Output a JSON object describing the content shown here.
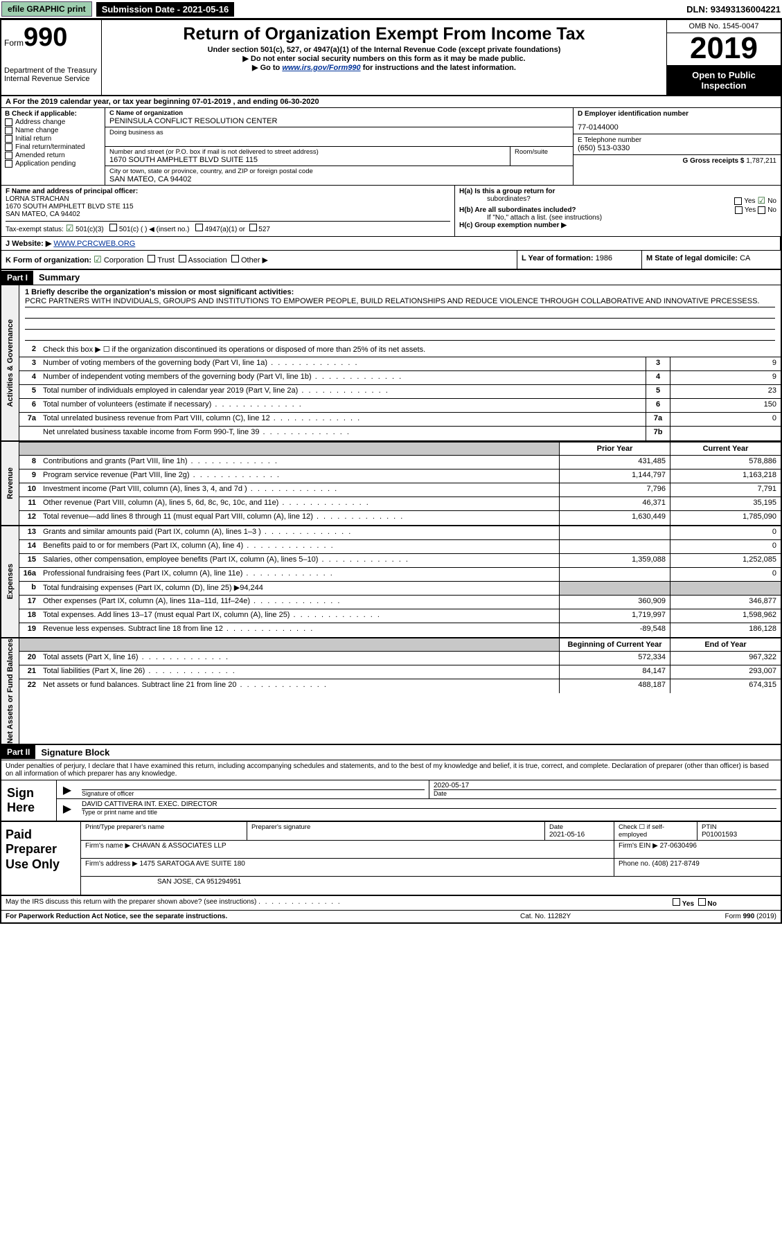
{
  "topbar": {
    "efile": "efile GRAPHIC print",
    "sub_label": "Submission Date - 2021-05-16",
    "dln": "DLN: 93493136004221"
  },
  "header": {
    "form_word": "Form",
    "form_num": "990",
    "dept": "Department of the Treasury",
    "irs": "Internal Revenue Service",
    "title": "Return of Organization Exempt From Income Tax",
    "sub1": "Under section 501(c), 527, or 4947(a)(1) of the Internal Revenue Code (except private foundations)",
    "sub2": "▶ Do not enter social security numbers on this form as it may be made public.",
    "sub3_pre": "▶ Go to ",
    "sub3_link": "www.irs.gov/Form990",
    "sub3_post": " for instructions and the latest information.",
    "omb": "OMB No. 1545-0047",
    "year": "2019",
    "otp": "Open to Public Inspection"
  },
  "row_a": "A For the 2019 calendar year, or tax year beginning 07-01-2019   , and ending 06-30-2020",
  "box_b": {
    "label": "B Check if applicable:",
    "items": [
      "Address change",
      "Name change",
      "Initial return",
      "Final return/terminated",
      "Amended return",
      "Application pending"
    ]
  },
  "box_c": {
    "name_label": "C Name of organization",
    "name": "PENINSULA CONFLICT RESOLUTION CENTER",
    "dba_label": "Doing business as",
    "addr_label": "Number and street (or P.O. box if mail is not delivered to street address)",
    "room_label": "Room/suite",
    "addr": "1670 SOUTH AMPHLETT BLVD SUITE 115",
    "city_label": "City or town, state or province, country, and ZIP or foreign postal code",
    "city": "SAN MATEO, CA  94402"
  },
  "box_d": {
    "label": "D Employer identification number",
    "value": "77-0144000"
  },
  "box_e": {
    "label": "E Telephone number",
    "value": "(650) 513-0330"
  },
  "box_g": {
    "label": "G Gross receipts $",
    "value": "1,787,211"
  },
  "box_f": {
    "label": "F  Name and address of principal officer:",
    "name": "LORNA STRACHAN",
    "addr1": "1670 SOUTH AMPHLETT BLVD STE 115",
    "addr2": "SAN MATEO, CA  94402"
  },
  "box_h": {
    "a_label": "H(a)  Is this a group return for",
    "a_sub": "subordinates?",
    "b_label": "H(b)  Are all subordinates included?",
    "b_note": "If \"No,\" attach a list. (see instructions)",
    "c_label": "H(c)  Group exemption number ▶"
  },
  "tax_exempt": {
    "label": "Tax-exempt status:",
    "c3": "501(c)(3)",
    "c_other": "501(c) (   ) ◀ (insert no.)",
    "a1": "4947(a)(1) or",
    "s527": "527"
  },
  "website": {
    "label": "J  Website: ▶",
    "value": "WWW.PCRCWEB.ORG"
  },
  "row_k": {
    "label": "K Form of organization:",
    "corp": "Corporation",
    "trust": "Trust",
    "assoc": "Association",
    "other": "Other ▶",
    "l_label": "L Year of formation:",
    "l_value": "1986",
    "m_label": "M State of legal domicile:",
    "m_value": "CA"
  },
  "part1": {
    "hdr": "Part I",
    "title": "Summary",
    "q1": "1 Briefly describe the organization's mission or most significant activities:",
    "mission": "PCRC PARTNERS WITH INDVIDUALS, GROUPS AND INSTITUTIONS TO EMPOWER PEOPLE, BUILD RELATIONSHIPS AND REDUCE VIOLENCE THROUGH COLLABORATIVE AND INNOVATIVE PRCESSESS.",
    "q2": "Check this box ▶ ☐  if the organization discontinued its operations or disposed of more than 25% of its net assets.",
    "lines_ag": [
      {
        "n": "3",
        "d": "Number of voting members of the governing body (Part VI, line 1a)",
        "b": "3",
        "v": "9"
      },
      {
        "n": "4",
        "d": "Number of independent voting members of the governing body (Part VI, line 1b)",
        "b": "4",
        "v": "9"
      },
      {
        "n": "5",
        "d": "Total number of individuals employed in calendar year 2019 (Part V, line 2a)",
        "b": "5",
        "v": "23"
      },
      {
        "n": "6",
        "d": "Total number of volunteers (estimate if necessary)",
        "b": "6",
        "v": "150"
      },
      {
        "n": "7a",
        "d": "Total unrelated business revenue from Part VIII, column (C), line 12",
        "b": "7a",
        "v": "0"
      },
      {
        "n": "",
        "d": "Net unrelated business taxable income from Form 990-T, line 39",
        "b": "7b",
        "v": ""
      }
    ],
    "col_prior": "Prior Year",
    "col_current": "Current Year",
    "revenue": [
      {
        "n": "8",
        "d": "Contributions and grants (Part VIII, line 1h)",
        "p": "431,485",
        "c": "578,886"
      },
      {
        "n": "9",
        "d": "Program service revenue (Part VIII, line 2g)",
        "p": "1,144,797",
        "c": "1,163,218"
      },
      {
        "n": "10",
        "d": "Investment income (Part VIII, column (A), lines 3, 4, and 7d )",
        "p": "7,796",
        "c": "7,791"
      },
      {
        "n": "11",
        "d": "Other revenue (Part VIII, column (A), lines 5, 6d, 8c, 9c, 10c, and 11e)",
        "p": "46,371",
        "c": "35,195"
      },
      {
        "n": "12",
        "d": "Total revenue—add lines 8 through 11 (must equal Part VIII, column (A), line 12)",
        "p": "1,630,449",
        "c": "1,785,090"
      }
    ],
    "expenses": [
      {
        "n": "13",
        "d": "Grants and similar amounts paid (Part IX, column (A), lines 1–3 )",
        "p": "",
        "c": "0"
      },
      {
        "n": "14",
        "d": "Benefits paid to or for members (Part IX, column (A), line 4)",
        "p": "",
        "c": "0"
      },
      {
        "n": "15",
        "d": "Salaries, other compensation, employee benefits (Part IX, column (A), lines 5–10)",
        "p": "1,359,088",
        "c": "1,252,085"
      },
      {
        "n": "16a",
        "d": "Professional fundraising fees (Part IX, column (A), line 11e)",
        "p": "",
        "c": "0"
      },
      {
        "n": "b",
        "d": "Total fundraising expenses (Part IX, column (D), line 25) ▶94,244",
        "p": "SHADE",
        "c": "SHADE"
      },
      {
        "n": "17",
        "d": "Other expenses (Part IX, column (A), lines 11a–11d, 11f–24e)",
        "p": "360,909",
        "c": "346,877"
      },
      {
        "n": "18",
        "d": "Total expenses. Add lines 13–17 (must equal Part IX, column (A), line 25)",
        "p": "1,719,997",
        "c": "1,598,962"
      },
      {
        "n": "19",
        "d": "Revenue less expenses. Subtract line 18 from line 12",
        "p": "-89,548",
        "c": "186,128"
      }
    ],
    "col_begin": "Beginning of Current Year",
    "col_end": "End of Year",
    "netassets": [
      {
        "n": "20",
        "d": "Total assets (Part X, line 16)",
        "p": "572,334",
        "c": "967,322"
      },
      {
        "n": "21",
        "d": "Total liabilities (Part X, line 26)",
        "p": "84,147",
        "c": "293,007"
      },
      {
        "n": "22",
        "d": "Net assets or fund balances. Subtract line 21 from line 20",
        "p": "488,187",
        "c": "674,315"
      }
    ],
    "vlab_ag": "Activities & Governance",
    "vlab_rev": "Revenue",
    "vlab_exp": "Expenses",
    "vlab_na": "Net Assets or Fund Balances"
  },
  "part2": {
    "hdr": "Part II",
    "title": "Signature Block",
    "decl": "Under penalties of perjury, I declare that I have examined this return, including accompanying schedules and statements, and to the best of my knowledge and belief, it is true, correct, and complete. Declaration of preparer (other than officer) is based on all information of which preparer has any knowledge.",
    "sign_here": "Sign Here",
    "sig_officer": "Signature of officer",
    "date": "Date",
    "date_val": "2020-05-17",
    "name_title": "DAVID CATTIVERA  INT. EXEC. DIRECTOR",
    "name_title_lbl": "Type or print name and title",
    "paid": "Paid Preparer Use Only",
    "p_name_lbl": "Print/Type preparer's name",
    "p_sig_lbl": "Preparer's signature",
    "p_date_lbl": "Date",
    "p_date": "2021-05-16",
    "p_check_lbl": "Check ☐ if self-employed",
    "ptin_lbl": "PTIN",
    "ptin": "P01001593",
    "firm_name_lbl": "Firm's name    ▶",
    "firm_name": "CHAVAN & ASSOCIATES LLP",
    "firm_ein_lbl": "Firm's EIN ▶",
    "firm_ein": "27-0630496",
    "firm_addr_lbl": "Firm's address ▶",
    "firm_addr1": "1475 SARATOGA AVE SUITE 180",
    "firm_addr2": "SAN JOSE, CA  951294951",
    "phone_lbl": "Phone no.",
    "phone": "(408) 217-8749",
    "discuss": "May the IRS discuss this return with the preparer shown above? (see instructions)",
    "yes": "Yes",
    "no": "No"
  },
  "footer": {
    "pra": "For Paperwork Reduction Act Notice, see the separate instructions.",
    "cat": "Cat. No. 11282Y",
    "formrev": "Form 990 (2019)"
  }
}
